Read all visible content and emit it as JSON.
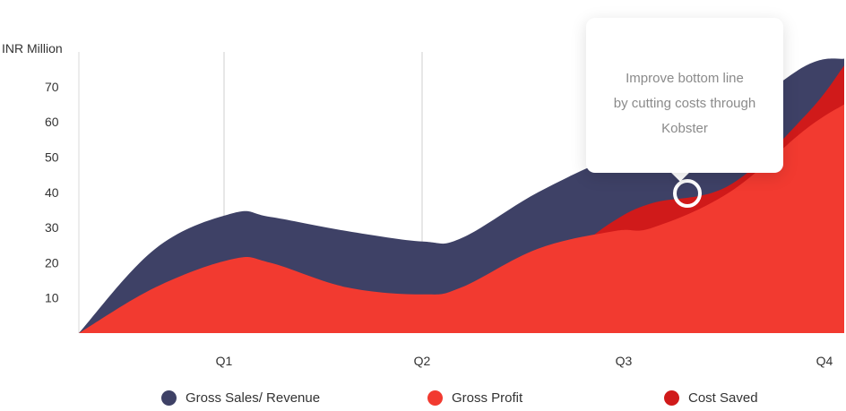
{
  "chart_data": {
    "type": "area",
    "ylabel": "INR Million",
    "yticks": [
      10,
      20,
      30,
      40,
      50,
      60,
      70
    ],
    "ylim": [
      0,
      80
    ],
    "categories": [
      "Q1",
      "Q2",
      "Q3",
      "Q4"
    ],
    "x_domain": [
      0,
      4
    ],
    "grid": "vertical gridlines at Q1 and Q2",
    "series": [
      {
        "name": "Gross Sales/ Revenue",
        "color": "#3e4166",
        "x": [
          0,
          0.4,
          0.8,
          1.0,
          1.4,
          1.8,
          2.0,
          2.4,
          2.8,
          3.0,
          3.4,
          3.8,
          4.0
        ],
        "values": [
          0,
          24,
          34,
          33,
          29,
          26,
          27,
          40,
          50,
          51,
          61,
          76,
          78
        ]
      },
      {
        "name": "Cost Saved",
        "color": "#d01a1a",
        "x": [
          2.6,
          2.8,
          3.0,
          3.4,
          3.8,
          4.0
        ],
        "values": [
          24,
          32,
          37,
          42,
          62,
          76
        ]
      },
      {
        "name": "Gross Profit",
        "color": "#f23a30",
        "x": [
          0,
          0.4,
          0.8,
          1.0,
          1.4,
          1.8,
          2.0,
          2.4,
          2.8,
          3.0,
          3.4,
          3.8,
          4.0
        ],
        "values": [
          0,
          13,
          21,
          20,
          13,
          11,
          13,
          24,
          29,
          30,
          40,
          58,
          65
        ]
      }
    ],
    "annotation": {
      "lines": [
        "Improve bottom line",
        "by cutting costs through",
        "Kobster"
      ],
      "marker_x": 3.33,
      "marker_value": 40
    },
    "legend": {
      "position": "bottom",
      "items": [
        {
          "label": "Gross Sales/ Revenue",
          "color": "#3e4166"
        },
        {
          "label": "Gross Profit",
          "color": "#f23a30"
        },
        {
          "label": "Cost Saved",
          "color": "#d01a1a"
        }
      ]
    }
  }
}
